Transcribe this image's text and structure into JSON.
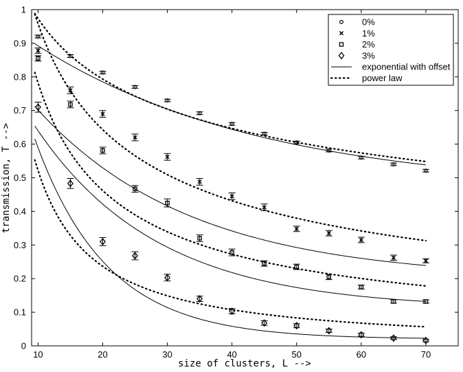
{
  "chart_data": {
    "type": "scatter",
    "xlabel": "size of clusters, L -->",
    "ylabel": "transmission, T -->",
    "xlim": [
      9,
      75
    ],
    "ylim": [
      0,
      1
    ],
    "xticks": [
      10,
      20,
      30,
      40,
      50,
      60,
      70
    ],
    "yticks": [
      0,
      0.1,
      0.2,
      0.3,
      0.4,
      0.5,
      0.6,
      0.7,
      0.8,
      0.9,
      1
    ],
    "ytick_labels": [
      "0",
      "0.1",
      "0.2",
      "0.3",
      "0.4",
      "0.5",
      "0.6",
      "0.7",
      "0.8",
      "0.9",
      "1"
    ],
    "grid": false,
    "legend_position": "top-right",
    "series": [
      {
        "name": "0%",
        "marker": "circle",
        "x": [
          10,
          15,
          20,
          25,
          30,
          35,
          40,
          45,
          50,
          55,
          60,
          65,
          70
        ],
        "y": [
          0.92,
          0.862,
          0.813,
          0.77,
          0.73,
          0.692,
          0.66,
          0.631,
          0.605,
          0.581,
          0.56,
          0.54,
          0.521
        ],
        "err": [
          0.004,
          0.004,
          0.004,
          0.004,
          0.004,
          0.004,
          0.004,
          0.004,
          0.004,
          0.004,
          0.004,
          0.004,
          0.004
        ]
      },
      {
        "name": "1%",
        "marker": "x",
        "x": [
          10,
          15,
          20,
          25,
          30,
          35,
          40,
          45,
          50,
          55,
          60,
          65,
          70
        ],
        "y": [
          0.878,
          0.76,
          0.69,
          0.62,
          0.562,
          0.488,
          0.445,
          0.412,
          0.348,
          0.335,
          0.315,
          0.262,
          0.253
        ],
        "err": [
          0.008,
          0.01,
          0.01,
          0.01,
          0.01,
          0.01,
          0.01,
          0.01,
          0.008,
          0.008,
          0.008,
          0.008,
          0.006
        ]
      },
      {
        "name": "2%",
        "marker": "square",
        "x": [
          10,
          15,
          20,
          25,
          30,
          35,
          40,
          45,
          50,
          55,
          60,
          65,
          70
        ],
        "y": [
          0.855,
          0.718,
          0.581,
          0.467,
          0.425,
          0.32,
          0.278,
          0.245,
          0.235,
          0.205,
          0.175,
          0.132,
          0.132
        ],
        "err": [
          0.008,
          0.01,
          0.01,
          0.01,
          0.012,
          0.01,
          0.01,
          0.008,
          0.008,
          0.008,
          0.006,
          0.005,
          0.005
        ]
      },
      {
        "name": "3%",
        "marker": "diamond",
        "x": [
          10,
          15,
          20,
          25,
          30,
          35,
          40,
          45,
          50,
          55,
          60,
          65,
          70
        ],
        "y": [
          0.71,
          0.483,
          0.31,
          0.268,
          0.203,
          0.14,
          0.103,
          0.068,
          0.06,
          0.045,
          0.033,
          0.023,
          0.016
        ],
        "err": [
          0.015,
          0.015,
          0.012,
          0.012,
          0.01,
          0.008,
          0.008,
          0.007,
          0.006,
          0.005,
          0.005,
          0.004,
          0.004
        ]
      }
    ],
    "fit_legend": [
      {
        "name": "exponential with offset",
        "style": "solid"
      },
      {
        "name": "power law",
        "style": "dotted"
      }
    ],
    "fits": {
      "exponential": [
        {
          "series": "0%",
          "a": 0.575,
          "k": 0.0285,
          "c": 0.46
        },
        {
          "series": "1%",
          "a": 0.765,
          "k": 0.0418,
          "c": 0.198
        },
        {
          "series": "2%",
          "a": 0.9,
          "k": 0.053,
          "c": 0.11
        },
        {
          "series": "3%",
          "a": 1.4,
          "k": 0.09,
          "c": 0.02
        }
      ],
      "power_law": [
        {
          "series": "0%",
          "a": 1.92,
          "b": 0.295
        },
        {
          "series": "1%",
          "a": 3.6,
          "b": 0.575
        },
        {
          "series": "2%",
          "a": 4.5,
          "b": 0.76
        },
        {
          "series": "3%",
          "a": 7.2,
          "b": 1.14
        }
      ]
    },
    "fit_x_range": [
      9.5,
      70
    ]
  }
}
